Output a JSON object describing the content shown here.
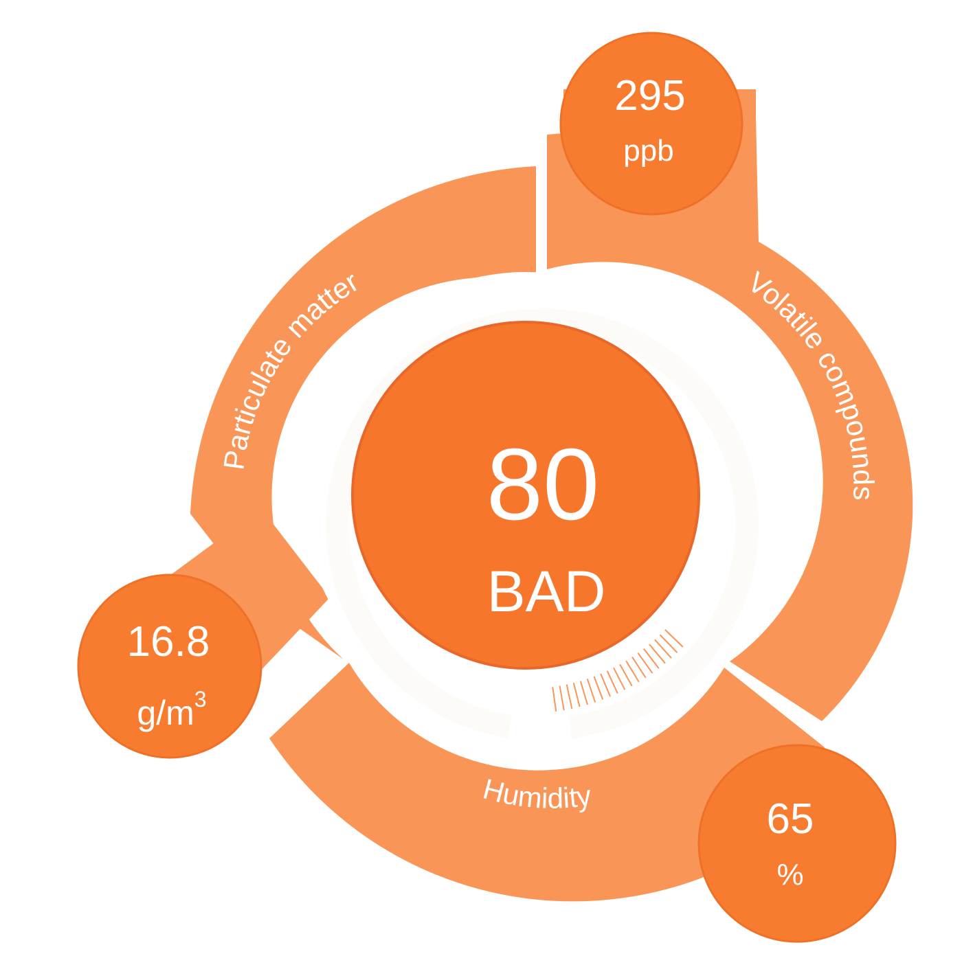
{
  "colors": {
    "band": "#F99557",
    "bubble": "#F87C2F",
    "bubble_ring": "#EF7128",
    "core": "#F6772C",
    "core_ring": "#E8672A",
    "track": "#FDFBF8",
    "text": "#FFFFFF"
  },
  "overall": {
    "score": "80",
    "rating": "BAD",
    "gauge_level": 0.8
  },
  "metrics": {
    "voc": {
      "label": "Volatile compounds",
      "value": "295",
      "unit": "ppb"
    },
    "pm": {
      "label": "Particulate matter",
      "value": "16.8",
      "unit": "g/m",
      "unit_superscript": "3"
    },
    "humidity": {
      "label": "Humidity",
      "value": "65",
      "unit": "%"
    }
  }
}
